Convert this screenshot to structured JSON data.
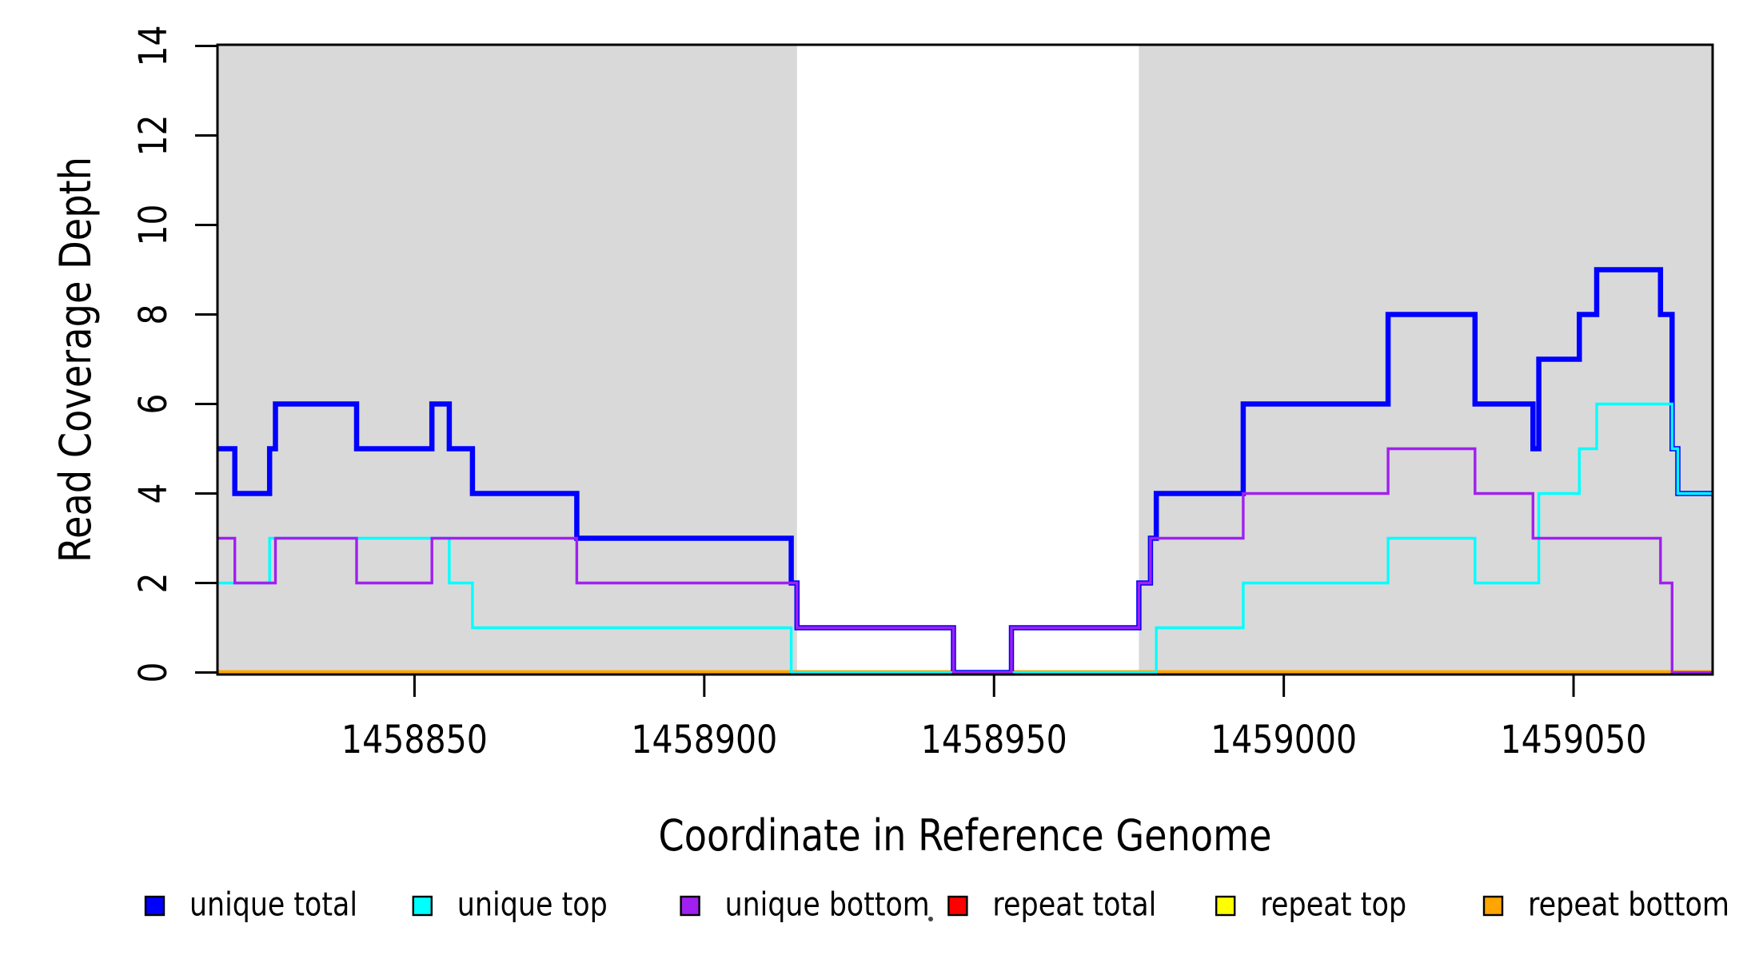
{
  "axes": {
    "x_label": "Coordinate in Reference Genome",
    "y_label": "Read Coverage Depth",
    "x_ticks": [
      "1458850",
      "1458900",
      "1458950",
      "1459000",
      "1459050"
    ],
    "x_tick_values": [
      1458850,
      1458900,
      1458950,
      1459000,
      1459050
    ],
    "y_ticks": [
      "0",
      "2",
      "4",
      "6",
      "8",
      "10",
      "12",
      "14"
    ],
    "y_tick_values": [
      0,
      2,
      4,
      6,
      8,
      10,
      12,
      14
    ]
  },
  "chart_data": {
    "type": "line",
    "subtype": "step-coverage",
    "title": "",
    "xlabel": "Coordinate in Reference Genome",
    "ylabel": "Read Coverage Depth",
    "x_domain": [
      1458816,
      1459074
    ],
    "ylim": [
      0,
      14
    ],
    "grid": false,
    "legend_position": "bottom",
    "shade_color": "#D9D9D9",
    "shaded_regions": [
      {
        "from": 1458816,
        "to": 1458916
      },
      {
        "from": 1458975,
        "to": 1459074
      }
    ],
    "series": [
      {
        "name": "repeat total",
        "color": "#FF0000",
        "line_width": 5.5,
        "steps": [
          [
            1458816,
            1459074,
            0
          ]
        ]
      },
      {
        "name": "repeat top",
        "color": "#FFFF00",
        "line_width": 5.5,
        "steps": [
          [
            1458816,
            1459074,
            0
          ]
        ]
      },
      {
        "name": "repeat bottom",
        "color": "#FFA500",
        "line_width": 5.5,
        "steps": [
          [
            1458816,
            1459074,
            0
          ]
        ]
      },
      {
        "name": "unique total",
        "color": "#0000FF",
        "line_width": 6.5,
        "steps": [
          [
            1458816,
            1458819,
            5
          ],
          [
            1458819,
            1458825,
            4
          ],
          [
            1458825,
            1458826,
            5
          ],
          [
            1458826,
            1458840,
            6
          ],
          [
            1458840,
            1458853,
            5
          ],
          [
            1458853,
            1458856,
            6
          ],
          [
            1458856,
            1458860,
            5
          ],
          [
            1458860,
            1458878,
            4
          ],
          [
            1458878,
            1458915,
            3
          ],
          [
            1458915,
            1458916,
            2
          ],
          [
            1458916,
            1458943,
            1
          ],
          [
            1458943,
            1458953,
            0
          ],
          [
            1458953,
            1458975,
            1
          ],
          [
            1458975,
            1458977,
            2
          ],
          [
            1458977,
            1458978,
            3
          ],
          [
            1458978,
            1458993,
            4
          ],
          [
            1458993,
            1459018,
            6
          ],
          [
            1459018,
            1459033,
            8
          ],
          [
            1459033,
            1459043,
            6
          ],
          [
            1459043,
            1459044,
            5
          ],
          [
            1459044,
            1459051,
            7
          ],
          [
            1459051,
            1459054,
            8
          ],
          [
            1459054,
            1459065,
            9
          ],
          [
            1459065,
            1459067,
            8
          ],
          [
            1459067,
            1459068,
            5
          ],
          [
            1459068,
            1459074,
            4
          ]
        ]
      },
      {
        "name": "unique top",
        "color": "#00FFFF",
        "line_width": 3.4,
        "steps": [
          [
            1458816,
            1458825,
            2
          ],
          [
            1458825,
            1458856,
            3
          ],
          [
            1458856,
            1458860,
            2
          ],
          [
            1458860,
            1458915,
            1
          ],
          [
            1458915,
            1458978,
            0
          ],
          [
            1458978,
            1458993,
            1
          ],
          [
            1458993,
            1459018,
            2
          ],
          [
            1459018,
            1459033,
            3
          ],
          [
            1459033,
            1459044,
            2
          ],
          [
            1459044,
            1459051,
            4
          ],
          [
            1459051,
            1459054,
            5
          ],
          [
            1459054,
            1459067,
            6
          ],
          [
            1459067,
            1459068,
            5
          ],
          [
            1459068,
            1459074,
            4
          ]
        ]
      },
      {
        "name": "unique bottom",
        "color": "#A020F0",
        "line_width": 3.4,
        "steps": [
          [
            1458816,
            1458819,
            3
          ],
          [
            1458819,
            1458826,
            2
          ],
          [
            1458826,
            1458840,
            3
          ],
          [
            1458840,
            1458853,
            2
          ],
          [
            1458853,
            1458878,
            3
          ],
          [
            1458878,
            1458916,
            2
          ],
          [
            1458916,
            1458943,
            1
          ],
          [
            1458943,
            1458953,
            0
          ],
          [
            1458953,
            1458975,
            1
          ],
          [
            1458975,
            1458977,
            2
          ],
          [
            1458977,
            1458993,
            3
          ],
          [
            1458993,
            1459018,
            4
          ],
          [
            1459018,
            1459033,
            5
          ],
          [
            1459033,
            1459043,
            4
          ],
          [
            1459043,
            1459065,
            3
          ],
          [
            1459065,
            1459067,
            2
          ],
          [
            1459067,
            1459074,
            0
          ]
        ]
      }
    ]
  },
  "legend": {
    "items": [
      {
        "label": "unique total",
        "color": "#0000FF"
      },
      {
        "label": "unique top",
        "color": "#00FFFF"
      },
      {
        "label": "unique bottom",
        "color": "#A020F0"
      },
      {
        "label": "repeat total",
        "color": "#FF0000"
      },
      {
        "label": "repeat top",
        "color": "#FFFF00"
      },
      {
        "label": "repeat bottom",
        "color": "#FFA500"
      }
    ]
  },
  "colors": {
    "shade": "#D9D9D9",
    "axis": "#000000",
    "background": "#FFFFFF"
  }
}
